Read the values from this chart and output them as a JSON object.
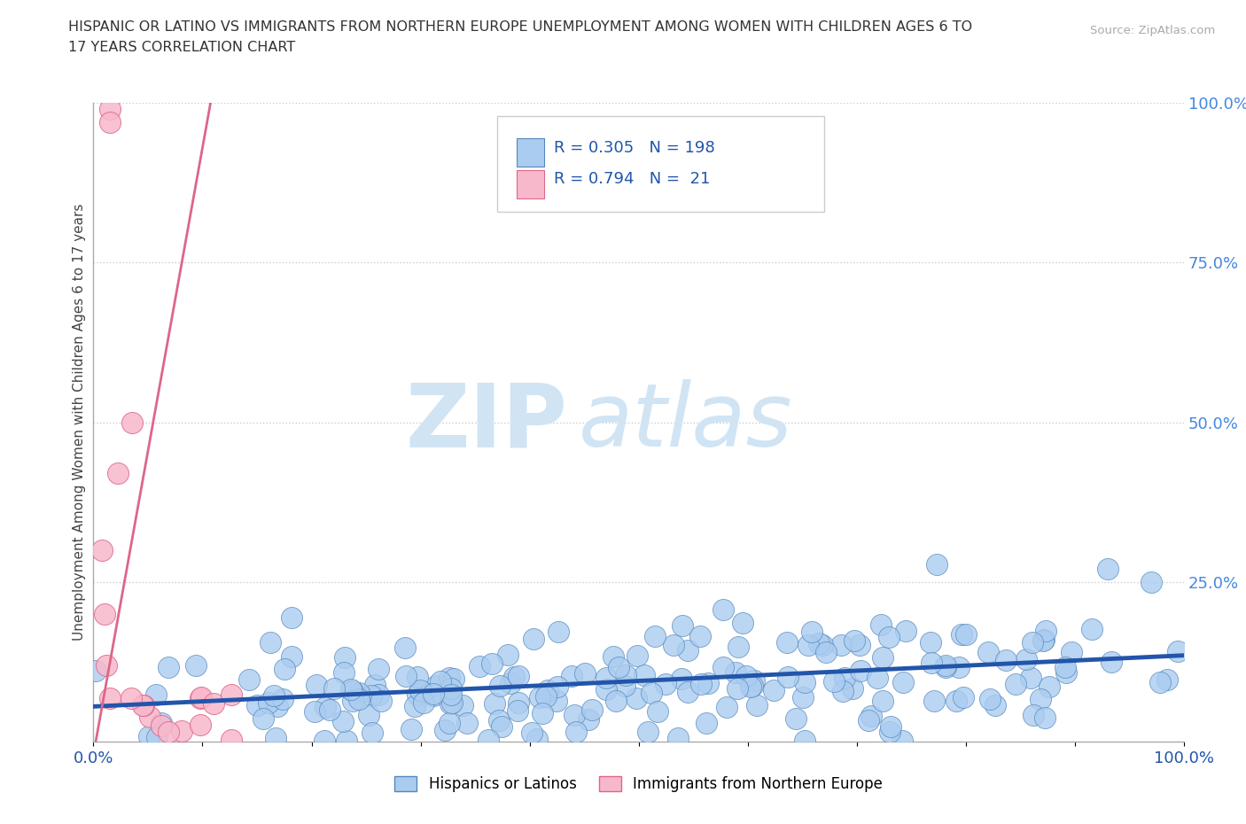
{
  "title_line1": "HISPANIC OR LATINO VS IMMIGRANTS FROM NORTHERN EUROPE UNEMPLOYMENT AMONG WOMEN WITH CHILDREN AGES 6 TO",
  "title_line2": "17 YEARS CORRELATION CHART",
  "source": "Source: ZipAtlas.com",
  "ylabel": "Unemployment Among Women with Children Ages 6 to 17 years",
  "xlim": [
    0,
    1
  ],
  "ylim": [
    0,
    1
  ],
  "ytick_labels": [
    "100.0%",
    "75.0%",
    "50.0%",
    "25.0%"
  ],
  "ytick_positions": [
    1.0,
    0.75,
    0.5,
    0.25
  ],
  "group1_color": "#aaccf0",
  "group1_edge_color": "#5588bb",
  "group1_line_color": "#2255aa",
  "group1_label": "Hispanics or Latinos",
  "group1_R": 0.305,
  "group1_N": 198,
  "group2_color": "#f8b8cc",
  "group2_edge_color": "#dd6688",
  "group2_line_color": "#dd6688",
  "group2_label": "Immigrants from Northern Europe",
  "group2_R": 0.794,
  "group2_N": 21,
  "title_color": "#333333",
  "source_color": "#aaaaaa",
  "watermark_zip": "ZIP",
  "watermark_atlas": "atlas",
  "watermark_color": "#d0e4f4",
  "legend_text_color": "#2255aa",
  "legend_N_color": "#cc2200",
  "grid_color": "#cccccc",
  "right_axis_color": "#4488dd",
  "background_color": "#ffffff",
  "blue_trend_slope": 0.08,
  "blue_trend_intercept": 0.055,
  "pink_trend_slope": 9.5,
  "pink_trend_intercept": -0.02
}
